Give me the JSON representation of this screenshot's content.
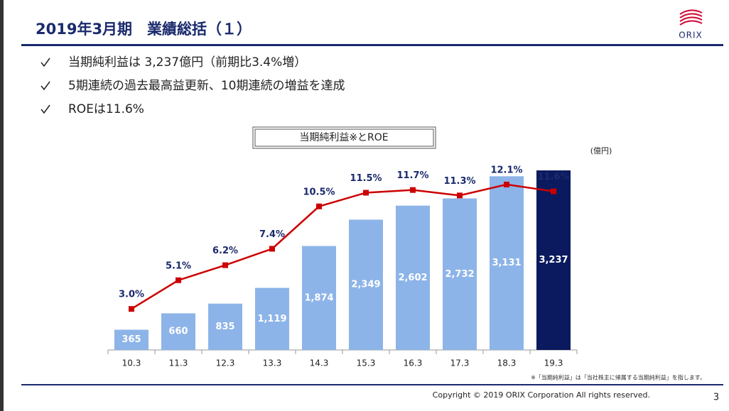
{
  "header": {
    "title": "2019年3月期　業績総括（１）",
    "logo": "ORIX"
  },
  "bullets": [
    "当期純利益は 3,237億円（前期比3.4%増）",
    "5期連続の過去最高益更新、10期連続の増益を達成",
    "ROEは11.6%"
  ],
  "chart_data": {
    "type": "combo",
    "title": "当期純利益※とROE",
    "unit_label": "(億円)",
    "categories": [
      "10.3",
      "11.3",
      "12.3",
      "13.3",
      "14.3",
      "15.3",
      "16.3",
      "17.3",
      "18.3",
      "19.3"
    ],
    "series": [
      {
        "type": "bar",
        "colors": [
          "#8db4e8",
          "#8db4e8",
          "#8db4e8",
          "#8db4e8",
          "#8db4e8",
          "#8db4e8",
          "#8db4e8",
          "#8db4e8",
          "#8db4e8",
          "#0b1a5e"
        ],
        "values": [
          365,
          660,
          835,
          1119,
          1874,
          2349,
          2602,
          2732,
          3131,
          3237
        ],
        "value_labels": [
          "365",
          "660",
          "835",
          "1,119",
          "1,874",
          "2,349",
          "2,602",
          "2,732",
          "3,131",
          "3,237"
        ]
      },
      {
        "type": "line",
        "axis": "y2",
        "color": "#cc0000",
        "values": [
          3.0,
          5.1,
          6.2,
          7.4,
          10.5,
          11.5,
          11.7,
          11.3,
          12.1,
          11.6
        ],
        "value_labels": [
          "3.0%",
          "5.1%",
          "6.2%",
          "7.4%",
          "10.5%",
          "11.5%",
          "11.7%",
          "11.3%",
          "12.1%",
          "11.6%"
        ]
      }
    ],
    "ylim": [
      0,
      3500
    ],
    "y2lim": [
      0,
      14.2
    ],
    "footnote": "※「当期純利益」は「当社株主に帰属する当期純利益」を指します。"
  },
  "footer": {
    "copyright": "Copyright © 2019 ORIX Corporation  All rights reserved.",
    "page": "3"
  }
}
